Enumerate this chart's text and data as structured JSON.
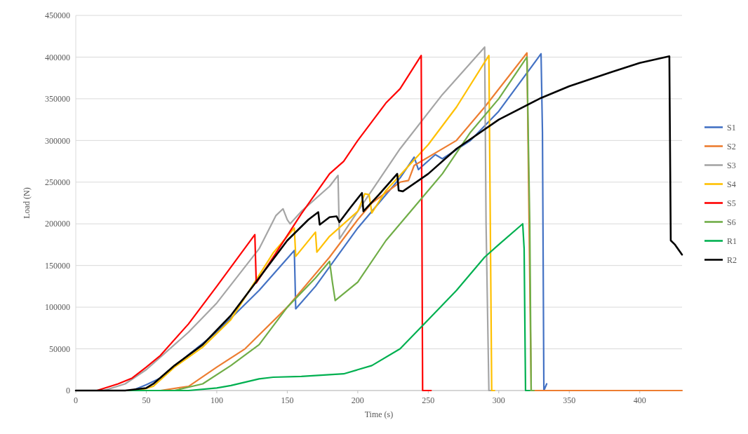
{
  "chart_data": {
    "type": "line",
    "xlabel": "Time (s)",
    "ylabel": "Load (N)",
    "xlim": [
      0,
      430
    ],
    "ylim": [
      0,
      450000
    ],
    "xticks": [
      0,
      50,
      100,
      150,
      200,
      250,
      300,
      350,
      400
    ],
    "yticks": [
      0,
      50000,
      100000,
      150000,
      200000,
      250000,
      300000,
      350000,
      400000,
      450000
    ],
    "grid": "y",
    "legend": "right",
    "marker": "none",
    "line_style": "solid",
    "series": [
      {
        "name": "S1",
        "color": "#4472c4",
        "x": [
          0,
          40,
          50,
          60,
          80,
          100,
          130,
          155,
          156,
          170,
          200,
          230,
          240,
          243,
          255,
          260,
          280,
          300,
          330,
          331,
          332,
          334
        ],
        "values": [
          0,
          0,
          7000,
          15000,
          43000,
          70000,
          120000,
          168000,
          98000,
          125000,
          195000,
          255000,
          280000,
          265000,
          283000,
          278000,
          300000,
          335000,
          404000,
          310000,
          0,
          8000
        ]
      },
      {
        "name": "S2",
        "color": "#ed7d31",
        "x": [
          0,
          60,
          80,
          100,
          120,
          150,
          180,
          200,
          210,
          230,
          236,
          240,
          270,
          290,
          320,
          323,
          430
        ],
        "values": [
          0,
          0,
          5000,
          28000,
          50000,
          100000,
          160000,
          205000,
          225000,
          250000,
          252000,
          270000,
          300000,
          340000,
          405000,
          0,
          0
        ]
      },
      {
        "name": "S3",
        "color": "#a5a5a5",
        "x": [
          0,
          20,
          35,
          50,
          80,
          100,
          130,
          142,
          147,
          150,
          152,
          160,
          180,
          186,
          187,
          200,
          230,
          260,
          290,
          291,
          293,
          296
        ],
        "values": [
          0,
          0,
          8000,
          25000,
          70000,
          105000,
          170000,
          210000,
          218000,
          205000,
          200000,
          215000,
          245000,
          258000,
          182000,
          215000,
          290000,
          355000,
          412000,
          200000,
          0,
          0
        ]
      },
      {
        "name": "S4",
        "color": "#ffc000",
        "x": [
          0,
          45,
          55,
          70,
          90,
          110,
          140,
          155,
          156,
          170,
          171,
          180,
          200,
          205,
          208,
          210,
          220,
          250,
          270,
          293,
          295,
          297
        ],
        "values": [
          0,
          0,
          5000,
          28000,
          52000,
          85000,
          165000,
          195000,
          161000,
          190000,
          166000,
          185000,
          215000,
          236000,
          235000,
          213000,
          240000,
          295000,
          340000,
          402000,
          0,
          0
        ]
      },
      {
        "name": "S5",
        "color": "#ff0000",
        "x": [
          0,
          15,
          30,
          40,
          50,
          60,
          80,
          100,
          127,
          128,
          140,
          160,
          180,
          190,
          200,
          220,
          230,
          245,
          246,
          252
        ],
        "values": [
          0,
          0,
          8000,
          15000,
          28000,
          42000,
          80000,
          125000,
          187000,
          129000,
          160000,
          212000,
          260000,
          275000,
          300000,
          345000,
          362000,
          402000,
          0,
          0
        ]
      },
      {
        "name": "S6",
        "color": "#70ad47",
        "x": [
          0,
          70,
          90,
          110,
          130,
          150,
          170,
          180,
          182,
          184,
          200,
          220,
          240,
          260,
          280,
          300,
          320,
          322,
          323,
          325
        ],
        "values": [
          0,
          0,
          8000,
          30000,
          55000,
          100000,
          135000,
          155000,
          130000,
          108000,
          130000,
          180000,
          220000,
          260000,
          310000,
          350000,
          400000,
          200000,
          0,
          0
        ]
      },
      {
        "name": "R1",
        "color": "#00b050",
        "x": [
          0,
          80,
          100,
          110,
          130,
          140,
          160,
          180,
          190,
          200,
          210,
          230,
          250,
          270,
          290,
          300,
          317,
          318,
          319,
          322
        ],
        "values": [
          0,
          0,
          3000,
          6000,
          14000,
          16000,
          17000,
          19000,
          20000,
          25000,
          30000,
          50000,
          85000,
          120000,
          160000,
          175000,
          200000,
          170000,
          0,
          0
        ]
      },
      {
        "name": "R2",
        "color": "#000000",
        "x": [
          0,
          35,
          50,
          55,
          70,
          90,
          110,
          130,
          150,
          165,
          172,
          173,
          180,
          185,
          187,
          195,
          203,
          204,
          215,
          228,
          229,
          232,
          250,
          270,
          300,
          330,
          350,
          380,
          400,
          421,
          422,
          425,
          430
        ],
        "values": [
          0,
          0,
          3000,
          8000,
          30000,
          55000,
          90000,
          135000,
          180000,
          205000,
          214000,
          199000,
          208000,
          209000,
          202000,
          220000,
          237000,
          215000,
          235000,
          260000,
          240000,
          239000,
          260000,
          290000,
          325000,
          351000,
          365000,
          382000,
          393000,
          401000,
          180000,
          175000,
          163000
        ]
      }
    ]
  }
}
